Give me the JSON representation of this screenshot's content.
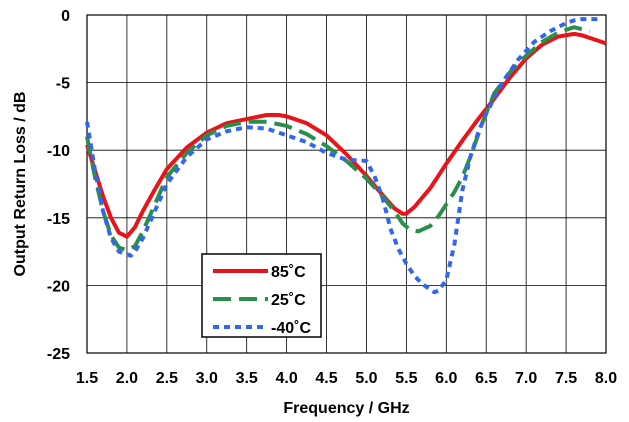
{
  "chart_data": {
    "type": "line",
    "title": "",
    "xlabel": "Frequency / GHz",
    "ylabel": "Output Return Loss / dB",
    "xlim": [
      1.5,
      8.0
    ],
    "ylim": [
      -25,
      0
    ],
    "x_ticks": [
      "1.5",
      "2.0",
      "2.5",
      "3.0",
      "3.5",
      "4.0",
      "4.5",
      "5.0",
      "5.5",
      "6.0",
      "6.5",
      "7.0",
      "7.5",
      "8.0"
    ],
    "y_ticks": [
      "0",
      "-5",
      "-10",
      "-15",
      "-20",
      "-25"
    ],
    "grid": true,
    "legend_position": "lower-left",
    "series": [
      {
        "name": "85˚C",
        "color": "#e8141a",
        "dash": "solid",
        "x": [
          1.5,
          1.6,
          1.7,
          1.8,
          1.9,
          2.0,
          2.1,
          2.2,
          2.35,
          2.5,
          2.75,
          3.0,
          3.25,
          3.5,
          3.75,
          3.9,
          4.0,
          4.25,
          4.5,
          4.75,
          5.0,
          5.2,
          5.35,
          5.45,
          5.5,
          5.6,
          5.8,
          6.0,
          6.2,
          6.4,
          6.6,
          6.8,
          7.0,
          7.2,
          7.4,
          7.6,
          7.7,
          7.8,
          8.0
        ],
        "y": [
          -9.6,
          -11.5,
          -13.4,
          -15.0,
          -16.1,
          -16.4,
          -15.7,
          -14.5,
          -12.9,
          -11.4,
          -9.8,
          -8.7,
          -8.0,
          -7.7,
          -7.4,
          -7.4,
          -7.5,
          -8.0,
          -8.9,
          -10.3,
          -11.9,
          -13.3,
          -14.3,
          -14.7,
          -14.7,
          -14.2,
          -12.8,
          -11.0,
          -9.3,
          -7.7,
          -6.2,
          -4.6,
          -3.2,
          -2.2,
          -1.6,
          -1.4,
          -1.5,
          -1.7,
          -2.1
        ]
      },
      {
        "name": "25˚C",
        "color": "#2a8f4c",
        "dash": "long",
        "x": [
          1.5,
          1.6,
          1.7,
          1.8,
          1.9,
          2.0,
          2.1,
          2.2,
          2.35,
          2.5,
          2.75,
          3.0,
          3.25,
          3.5,
          3.75,
          4.0,
          4.25,
          4.5,
          4.75,
          5.0,
          5.2,
          5.35,
          5.45,
          5.55,
          5.65,
          5.8,
          5.9,
          6.0,
          6.1,
          6.2,
          6.3,
          6.45,
          6.6,
          6.8,
          7.0,
          7.2,
          7.4,
          7.6,
          7.8
        ],
        "y": [
          -9.0,
          -12.0,
          -14.5,
          -16.3,
          -17.2,
          -17.4,
          -17.1,
          -16.0,
          -14.0,
          -12.0,
          -10.2,
          -8.9,
          -8.2,
          -7.9,
          -7.9,
          -8.2,
          -8.8,
          -9.7,
          -10.8,
          -12.1,
          -13.4,
          -14.5,
          -15.4,
          -15.9,
          -16.0,
          -15.6,
          -14.9,
          -14.0,
          -13.1,
          -12.0,
          -10.5,
          -8.0,
          -5.8,
          -4.2,
          -3.0,
          -2.0,
          -1.3,
          -0.9,
          -1.2
        ]
      },
      {
        "name": "-40˚C",
        "color": "#3366f0",
        "dash": "short",
        "x": [
          1.5,
          1.6,
          1.7,
          1.8,
          1.9,
          2.0,
          2.05,
          2.1,
          2.2,
          2.35,
          2.5,
          2.75,
          3.0,
          3.25,
          3.5,
          3.75,
          4.0,
          4.25,
          4.5,
          4.75,
          5.0,
          5.1,
          5.2,
          5.25,
          5.3,
          5.4,
          5.5,
          5.6,
          5.7,
          5.8,
          5.85,
          5.9,
          6.0,
          6.1,
          6.2,
          6.3,
          6.4,
          6.5,
          6.7,
          6.9,
          7.1,
          7.3,
          7.5,
          7.6,
          7.7,
          7.8,
          7.9
        ],
        "y": [
          -7.9,
          -11.5,
          -14.5,
          -16.5,
          -17.5,
          -17.7,
          -17.8,
          -17.5,
          -16.5,
          -14.5,
          -12.5,
          -10.5,
          -9.2,
          -8.6,
          -8.3,
          -8.4,
          -8.9,
          -9.4,
          -10.2,
          -10.7,
          -10.8,
          -11.9,
          -13.5,
          -14.6,
          -15.8,
          -17.3,
          -18.4,
          -19.3,
          -19.9,
          -20.3,
          -20.5,
          -20.4,
          -19.6,
          -17.0,
          -13.0,
          -10.5,
          -8.7,
          -7.3,
          -5.0,
          -3.3,
          -2.0,
          -1.2,
          -0.6,
          -0.4,
          -0.3,
          -0.3,
          -0.3
        ]
      }
    ]
  }
}
